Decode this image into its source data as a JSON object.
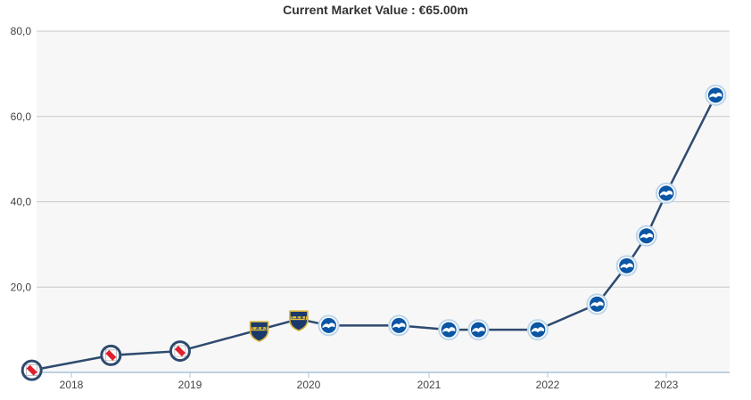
{
  "chart_data": {
    "type": "line",
    "title": "Current Market Value : €65.00m",
    "xlabel": "",
    "ylabel": "",
    "x_ticks": [
      "2018",
      "2019",
      "2020",
      "2021",
      "2022",
      "2023"
    ],
    "y_ticks": [
      "20,0",
      "40,0",
      "60,0",
      "80,0"
    ],
    "ylim": [
      0,
      80
    ],
    "grid": "horizontal",
    "line_color": "#2e4a6e",
    "plot_background": "#f7f7f8",
    "points": [
      {
        "x": "2017-09",
        "y": 0.5,
        "club_icon": "river-plate-crest-icon"
      },
      {
        "x": "2018-05",
        "y": 4,
        "club_icon": "river-plate-crest-icon"
      },
      {
        "x": "2018-12",
        "y": 5,
        "club_icon": "river-plate-crest-icon"
      },
      {
        "x": "2019-08",
        "y": 10,
        "club_icon": "boca-juniors-crest-icon"
      },
      {
        "x": "2019-12",
        "y": 12.5,
        "club_icon": "boca-juniors-crest-icon"
      },
      {
        "x": "2020-03",
        "y": 11,
        "club_icon": "brighton-crest-icon"
      },
      {
        "x": "2020-10",
        "y": 11,
        "club_icon": "brighton-crest-icon"
      },
      {
        "x": "2021-03",
        "y": 10,
        "club_icon": "brighton-crest-icon"
      },
      {
        "x": "2021-06",
        "y": 10,
        "club_icon": "brighton-crest-icon"
      },
      {
        "x": "2021-12",
        "y": 10,
        "club_icon": "brighton-crest-icon"
      },
      {
        "x": "2022-06",
        "y": 16,
        "club_icon": "brighton-crest-icon"
      },
      {
        "x": "2022-09",
        "y": 25,
        "club_icon": "brighton-crest-icon"
      },
      {
        "x": "2022-11",
        "y": 32,
        "club_icon": "brighton-crest-icon"
      },
      {
        "x": "2023-01",
        "y": 42,
        "club_icon": "brighton-crest-icon"
      },
      {
        "x": "2023-06",
        "y": 65,
        "club_icon": "brighton-crest-icon"
      }
    ]
  }
}
